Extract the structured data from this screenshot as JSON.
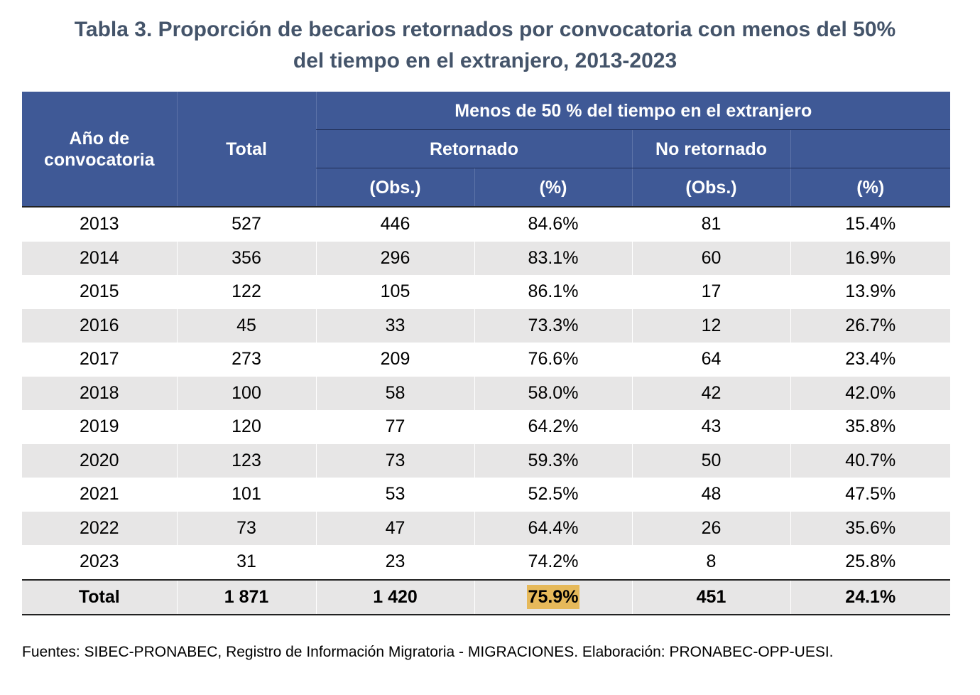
{
  "title": {
    "line1": "Tabla 3. Proporción de becarios retornados por convocatoria con menos del 50%",
    "line2": "del tiempo en el extranjero, 2013-2023"
  },
  "header": {
    "year": "Año de convocatoria",
    "total": "Total",
    "group": "Menos de 50 % del tiempo en el extranjero",
    "returned": "Retornado",
    "not_returned": "No retornado",
    "obs": "(Obs.)",
    "pct": "(%)"
  },
  "rows": [
    {
      "year": "2013",
      "total": "527",
      "ret_obs": "446",
      "ret_pct": "84.6%",
      "nr_obs": "81",
      "nr_pct": "15.4%"
    },
    {
      "year": "2014",
      "total": "356",
      "ret_obs": "296",
      "ret_pct": "83.1%",
      "nr_obs": "60",
      "nr_pct": "16.9%"
    },
    {
      "year": "2015",
      "total": "122",
      "ret_obs": "105",
      "ret_pct": "86.1%",
      "nr_obs": "17",
      "nr_pct": "13.9%"
    },
    {
      "year": "2016",
      "total": "45",
      "ret_obs": "33",
      "ret_pct": "73.3%",
      "nr_obs": "12",
      "nr_pct": "26.7%"
    },
    {
      "year": "2017",
      "total": "273",
      "ret_obs": "209",
      "ret_pct": "76.6%",
      "nr_obs": "64",
      "nr_pct": "23.4%"
    },
    {
      "year": "2018",
      "total": "100",
      "ret_obs": "58",
      "ret_pct": "58.0%",
      "nr_obs": "42",
      "nr_pct": "42.0%"
    },
    {
      "year": "2019",
      "total": "120",
      "ret_obs": "77",
      "ret_pct": "64.2%",
      "nr_obs": "43",
      "nr_pct": "35.8%"
    },
    {
      "year": "2020",
      "total": "123",
      "ret_obs": "73",
      "ret_pct": "59.3%",
      "nr_obs": "50",
      "nr_pct": "40.7%"
    },
    {
      "year": "2021",
      "total": "101",
      "ret_obs": "53",
      "ret_pct": "52.5%",
      "nr_obs": "48",
      "nr_pct": "47.5%"
    },
    {
      "year": "2022",
      "total": "73",
      "ret_obs": "47",
      "ret_pct": "64.4%",
      "nr_obs": "26",
      "nr_pct": "35.6%"
    },
    {
      "year": "2023",
      "total": "31",
      "ret_obs": "23",
      "ret_pct": "74.2%",
      "nr_obs": "8",
      "nr_pct": "25.8%"
    }
  ],
  "total_row": {
    "label": "Total",
    "total": "1 871",
    "ret_obs": "1 420",
    "ret_pct": "75.9%",
    "nr_obs": "451",
    "nr_pct": "24.1%"
  },
  "colors": {
    "title": "#44546a",
    "header_bg": "#3f5996",
    "stripe": "#e7e6e6",
    "highlight": "#e6b95a"
  },
  "source": "Fuentes: SIBEC-PRONABEC, Registro de Información Migratoria - MIGRACIONES. Elaboración: PRONABEC-OPP-UESI."
}
